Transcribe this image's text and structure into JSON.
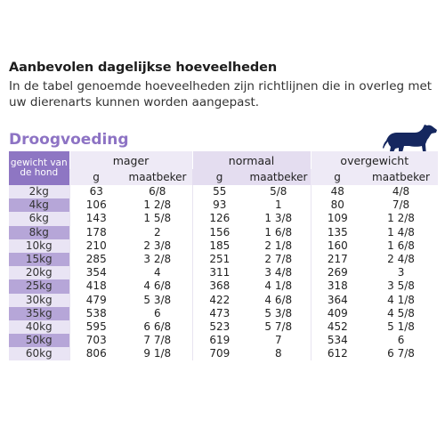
{
  "heading": "Aanbevolen dagelijkse hoeveelheden",
  "intro": "In de tabel genoemde hoeveelheden zijn richtlijnen die in overleg met uw dierenarts kunnen worden aangepast.",
  "section_title": "Droogvoeding",
  "dog_icon": "dog-silhouette-icon",
  "colors": {
    "accent": "#8d73c4",
    "header": "#8e76c3",
    "row_dark": "#b6a6d8",
    "row_light": "#e9e4f4",
    "dog": "#15275f"
  },
  "table": {
    "weight_header": "gewicht van de hond",
    "groups": [
      "mager",
      "normaal",
      "overgewicht"
    ],
    "sub_g": "g",
    "sub_cup": "maatbeker",
    "rows": [
      [
        "2kg",
        "63",
        "6/8",
        "55",
        "5/8",
        "48",
        "4/8"
      ],
      [
        "4kg",
        "106",
        "1 2/8",
        "93",
        "1",
        "80",
        "7/8"
      ],
      [
        "6kg",
        "143",
        "1 5/8",
        "126",
        "1 3/8",
        "109",
        "1 2/8"
      ],
      [
        "8kg",
        "178",
        "2",
        "156",
        "1 6/8",
        "135",
        "1 4/8"
      ],
      [
        "10kg",
        "210",
        "2 3/8",
        "185",
        "2 1/8",
        "160",
        "1 6/8"
      ],
      [
        "15kg",
        "285",
        "3 2/8",
        "251",
        "2 7/8",
        "217",
        "2 4/8"
      ],
      [
        "20kg",
        "354",
        "4",
        "311",
        "3 4/8",
        "269",
        "3"
      ],
      [
        "25kg",
        "418",
        "4 6/8",
        "368",
        "4 1/8",
        "318",
        "3 5/8"
      ],
      [
        "30kg",
        "479",
        "5 3/8",
        "422",
        "4 6/8",
        "364",
        "4 1/8"
      ],
      [
        "35kg",
        "538",
        "6",
        "473",
        "5 3/8",
        "409",
        "4 5/8"
      ],
      [
        "40kg",
        "595",
        "6 6/8",
        "523",
        "5 7/8",
        "452",
        "5 1/8"
      ],
      [
        "50kg",
        "703",
        "7 7/8",
        "619",
        "7",
        "534",
        "6"
      ],
      [
        "60kg",
        "806",
        "9 1/8",
        "709",
        "8",
        "612",
        "6 7/8"
      ]
    ]
  }
}
